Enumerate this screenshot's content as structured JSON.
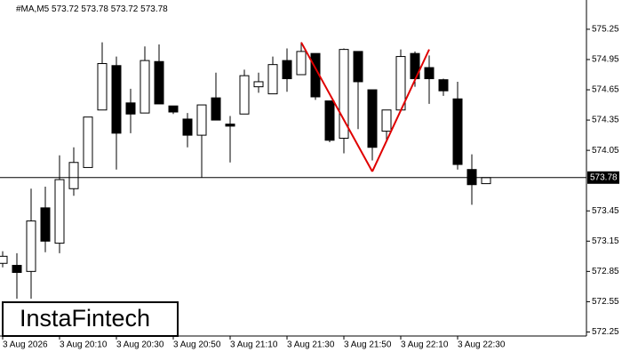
{
  "chart_data": {
    "type": "candlestick",
    "symbol": "#MA,M5",
    "categories": [
      "3 Aug 2026",
      null,
      null,
      null,
      "3 Aug 20:10",
      null,
      null,
      null,
      "3 Aug 20:30",
      null,
      null,
      null,
      "3 Aug 20:50",
      null,
      null,
      null,
      "3 Aug 21:10",
      null,
      null,
      null,
      "3 Aug 21:30",
      null,
      null,
      null,
      "3 Aug 21:50",
      null,
      null,
      null,
      "3 Aug 22:10",
      null,
      null,
      null,
      "3 Aug 22:30",
      null,
      null
    ],
    "open": [
      572.93,
      572.91,
      572.85,
      573.48,
      573.13,
      573.67,
      573.88,
      574.45,
      574.89,
      574.52,
      574.42,
      574.93,
      574.49,
      574.36,
      574.2,
      574.57,
      574.31,
      574.41,
      574.68,
      574.61,
      574.94,
      574.8,
      575.01,
      574.54,
      574.17,
      575.03,
      574.65,
      574.24,
      574.45,
      575.01,
      574.87,
      574.75,
      574.56,
      573.86,
      573.72
    ],
    "high": [
      573.05,
      573.03,
      573.67,
      573.69,
      574.0,
      574.08,
      574.38,
      575.12,
      574.98,
      574.66,
      575.08,
      575.1,
      574.49,
      574.42,
      574.5,
      574.82,
      574.39,
      574.85,
      574.82,
      574.98,
      575.06,
      575.12,
      575.01,
      574.54,
      575.06,
      575.03,
      574.65,
      574.45,
      575.05,
      575.03,
      574.99,
      574.76,
      574.73,
      574.01,
      573.78
    ],
    "low": [
      572.89,
      572.58,
      572.58,
      573.04,
      573.03,
      573.6,
      573.88,
      574.45,
      573.86,
      574.22,
      574.42,
      574.51,
      574.41,
      574.08,
      573.78,
      574.35,
      573.93,
      574.41,
      574.62,
      574.61,
      574.63,
      574.8,
      574.55,
      574.13,
      574.02,
      574.26,
      573.95,
      574.13,
      574.45,
      574.68,
      574.51,
      574.59,
      573.86,
      573.51,
      573.72
    ],
    "close": [
      573.0,
      572.84,
      573.35,
      573.15,
      573.76,
      573.93,
      574.38,
      574.91,
      574.22,
      574.41,
      574.94,
      574.51,
      574.43,
      574.2,
      574.5,
      574.35,
      574.29,
      574.79,
      574.73,
      574.9,
      574.76,
      575.03,
      574.58,
      574.15,
      575.05,
      574.73,
      574.08,
      574.45,
      574.98,
      574.76,
      574.76,
      574.64,
      573.91,
      573.71,
      573.78
    ],
    "up_color": "#ffffff",
    "down_color": "#000000",
    "pattern": {
      "color": "#e00000",
      "values": [
        null,
        null,
        null,
        null,
        null,
        null,
        null,
        null,
        null,
        null,
        null,
        null,
        null,
        null,
        null,
        null,
        null,
        null,
        null,
        null,
        null,
        575.12,
        null,
        null,
        null,
        null,
        573.84,
        null,
        null,
        null,
        575.05,
        null,
        null,
        null,
        null
      ]
    },
    "ylim": [
      572.21,
      575.54
    ],
    "yticks": [
      575.25,
      574.95,
      574.65,
      574.35,
      574.05,
      573.45,
      573.15,
      572.85,
      572.55,
      572.25
    ]
  },
  "watermark": "InstaFintech"
}
